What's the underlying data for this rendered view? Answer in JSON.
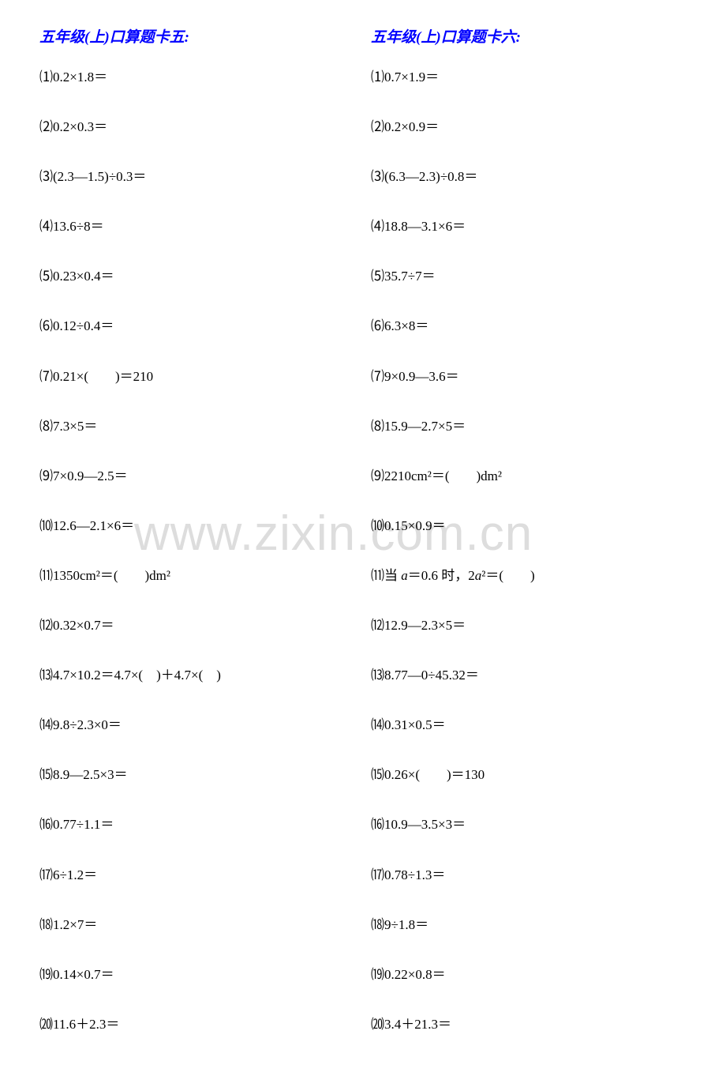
{
  "watermark": "www.zixin.com.cn",
  "left_column": {
    "title": "五年级(上)口算题卡五:",
    "problems": [
      "⑴0.2×1.8＝",
      "⑵0.2×0.3＝",
      "⑶(2.3—1.5)÷0.3＝",
      "⑷13.6÷8＝",
      "⑸0.23×0.4＝",
      "⑹0.12÷0.4＝",
      "⑺0.21×(　　)＝210",
      "⑻7.3×5＝",
      "⑼7×0.9—2.5＝",
      "⑽12.6—2.1×6＝",
      "⑾1350cm²＝(　　)dm²",
      "⑿0.32×0.7＝",
      "⒀4.7×10.2＝4.7×(　)＋4.7×(　)",
      "⒁9.8÷2.3×0＝",
      "⒂8.9—2.5×3＝",
      "⒃0.77÷1.1＝",
      "⒄6÷1.2＝",
      "⒅1.2×7＝",
      "⒆0.14×0.7＝",
      "⒇11.6＋2.3＝"
    ]
  },
  "right_column": {
    "title": "五年级(上)口算题卡六:",
    "problems": [
      "⑴0.7×1.9＝",
      "⑵0.2×0.9＝",
      "⑶(6.3—2.3)÷0.8＝",
      "⑷18.8—3.1×6＝",
      "⑸35.7÷7＝",
      "⑹6.3×8＝",
      "⑺9×0.9—3.6＝",
      "⑻15.9—2.7×5＝",
      "⑼2210cm²＝(　　)dm²",
      "⑽0.15×0.9＝",
      "⑾当 a＝0.6 时，2a²＝(　　)",
      "⑿12.9—2.3×5＝",
      "⒀8.77—0÷45.32＝",
      "⒁0.31×0.5＝",
      "⒂0.26×(　　)＝130",
      "⒃10.9—3.5×3＝",
      "⒄0.78÷1.3＝",
      "⒅9÷1.8＝",
      "⒆0.22×0.8＝",
      "⒇3.4＋21.3＝"
    ]
  },
  "styles": {
    "title_color": "#0000ff",
    "text_color": "#000000",
    "background_color": "#ffffff",
    "watermark_color": "#dddddd",
    "title_fontsize": 19,
    "problem_fontsize": 17,
    "watermark_fontsize": 62
  }
}
